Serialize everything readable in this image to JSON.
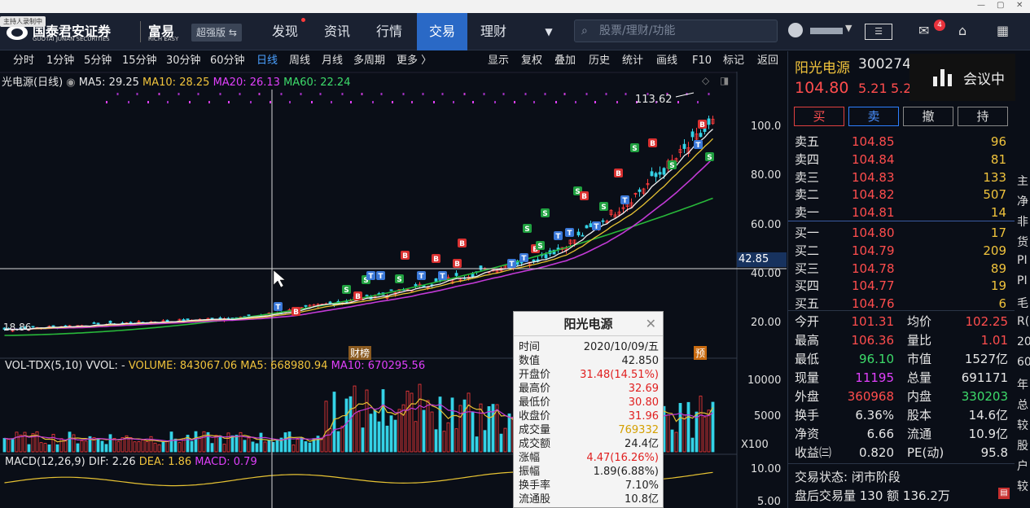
{
  "window": {
    "minimize": "—",
    "restore": "▢",
    "close": "✕"
  },
  "recbadge": "主持人录制中",
  "brand": {
    "name": "国泰君安证券",
    "name_en": "GUOTAI JUNAN SECURITIES",
    "sub": "富易",
    "sub_en": "RICH EASY",
    "edition": "超强版"
  },
  "nav": [
    {
      "label": "发现"
    },
    {
      "label": "资讯"
    },
    {
      "label": "行情"
    },
    {
      "label": "交易"
    },
    {
      "label": "理财"
    }
  ],
  "search_placeholder": "股票/理财/功能",
  "mail_count": "4",
  "toolbar_left": [
    "分时",
    "1分钟",
    "5分钟",
    "15分钟",
    "30分钟",
    "60分钟",
    "日线",
    "周线",
    "月线",
    "多周期",
    "更多 〉"
  ],
  "toolbar_right": [
    "显示",
    "复权",
    "叠加",
    "历史",
    "统计",
    "画线",
    "F10",
    "标记",
    "返回"
  ],
  "kline": {
    "title": "光电源(日线)",
    "ma5": "MA5: 29.25",
    "ma10": "MA10: 28.25",
    "ma20": "MA20: 26.13",
    "ma60": "MA60: 22.24",
    "high_label": "113.62",
    "low_label": "18.86",
    "cursor_price": "42.85",
    "badge_bang": "财榜",
    "badge_yu": "预",
    "yticks": [
      "100.0",
      "80.00",
      "60.00",
      "40.00",
      "20.00"
    ]
  },
  "volume": {
    "title": "VOL-TDX(5,10)",
    "vvol": "VVOL: -",
    "vol": "VOLUME: 843067.06",
    "ma5": "MA5: 668980.94",
    "ma10": "MA10: 670295.56",
    "yticks": [
      "10000",
      "5000"
    ],
    "unit": "X100"
  },
  "macd": {
    "title": "MACD(12,26,9)",
    "dif": "DIF: 2.26",
    "dea": "DEA: 1.86",
    "macd": "MACD: 0.79",
    "yticks": [
      "10.00",
      "5.00"
    ]
  },
  "quote": {
    "name": "阳光电源",
    "code": "300274",
    "price": "104.80",
    "change": "5.21",
    "pct": "5.2"
  },
  "trade_buttons": [
    "买",
    "卖",
    "撤",
    "持"
  ],
  "asks": [
    {
      "label": "卖五",
      "price": "104.85",
      "vol": "96"
    },
    {
      "label": "卖四",
      "price": "104.84",
      "vol": "81"
    },
    {
      "label": "卖三",
      "price": "104.83",
      "vol": "133"
    },
    {
      "label": "卖二",
      "price": "104.82",
      "vol": "507"
    },
    {
      "label": "卖一",
      "price": "104.81",
      "vol": "14"
    }
  ],
  "bids": [
    {
      "label": "买一",
      "price": "104.80",
      "vol": "17"
    },
    {
      "label": "买二",
      "price": "104.79",
      "vol": "209"
    },
    {
      "label": "买三",
      "price": "104.78",
      "vol": "89"
    },
    {
      "label": "买四",
      "price": "104.77",
      "vol": "19"
    },
    {
      "label": "买五",
      "price": "104.76",
      "vol": "6"
    }
  ],
  "stats": [
    {
      "k1": "今开",
      "v1": "101.31",
      "c1": "red",
      "k2": "均价",
      "v2": "102.25",
      "c2": "red"
    },
    {
      "k1": "最高",
      "v1": "106.36",
      "c1": "red",
      "k2": "量比",
      "v2": "1.01",
      "c2": "red"
    },
    {
      "k1": "最低",
      "v1": "96.10",
      "c1": "green",
      "k2": "市值",
      "v2": "1527亿",
      "c2": "white"
    },
    {
      "k1": "现量",
      "v1": "11195",
      "c1": "purple",
      "k2": "总量",
      "v2": "691171",
      "c2": "white"
    },
    {
      "k1": "外盘",
      "v1": "360968",
      "c1": "red",
      "k2": "内盘",
      "v2": "330203",
      "c2": "green"
    },
    {
      "k1": "换手",
      "v1": "6.36%",
      "c1": "white",
      "k2": "股本",
      "v2": "14.6亿",
      "c2": "white"
    },
    {
      "k1": "净资",
      "v1": "6.66",
      "c1": "white",
      "k2": "流通",
      "v2": "10.9亿",
      "c2": "white"
    },
    {
      "k1": "收益㈢",
      "v1": "0.820",
      "c1": "white",
      "k2": "PE(动)",
      "v2": "95.8",
      "c2": "white"
    }
  ],
  "status": {
    "state": "交易状态: 闭市阶段",
    "after": "盘后交易量 130 额 136.2万"
  },
  "meeting": "会议中",
  "right_edge": [
    "主",
    "净",
    "非",
    "货",
    "PI",
    "PI",
    "毛",
    "R(",
    "20",
    "60",
    "年",
    "总",
    "较",
    "股",
    "户",
    "较"
  ],
  "popup": {
    "title": "阳光电源",
    "rows": [
      {
        "k": "时间",
        "v": "2020/10/09/五",
        "c": "#222"
      },
      {
        "k": "数值",
        "v": "42.850",
        "c": "#222"
      },
      {
        "k": "开盘价",
        "v": "31.48(14.51%)",
        "c": "#e02020"
      },
      {
        "k": "最高价",
        "v": "32.69",
        "c": "#e02020"
      },
      {
        "k": "最低价",
        "v": "30.80",
        "c": "#e02020"
      },
      {
        "k": "收盘价",
        "v": "31.96",
        "c": "#e02020"
      },
      {
        "k": "成交量",
        "v": "769332",
        "c": "#d4a000"
      },
      {
        "k": "成交额",
        "v": "24.4亿",
        "c": "#222"
      },
      {
        "k": "涨幅",
        "v": "4.47(16.26%)",
        "c": "#e02020"
      },
      {
        "k": "振幅",
        "v": "1.89(6.88%)",
        "c": "#222"
      },
      {
        "k": "换手率",
        "v": "7.10%",
        "c": "#222"
      },
      {
        "k": "流通股",
        "v": "10.8亿",
        "c": "#222"
      }
    ]
  }
}
